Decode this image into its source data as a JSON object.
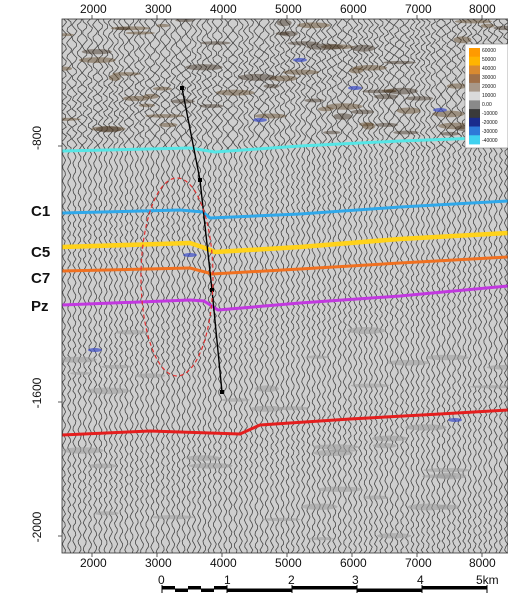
{
  "section": {
    "x_ticks": [
      "2000",
      "3000",
      "4000",
      "5000",
      "6000",
      "7000",
      "8000"
    ],
    "y_ticks": [
      "-800",
      "-1600",
      "-2000"
    ],
    "horizons": [
      {
        "label": "",
        "color": "#55e6e6"
      },
      {
        "label": "C1",
        "color": "#2fa8ea"
      },
      {
        "label": "C5",
        "color": "#ffd21a"
      },
      {
        "label": "C7",
        "color": "#f07020"
      },
      {
        "label": "Pz",
        "color": "#c238e0"
      },
      {
        "label": "",
        "color": "#e41e1e"
      }
    ],
    "fault_color": "#000000",
    "anomaly_outline_color": "#e03030"
  },
  "colorbar": {
    "labels": [
      "60000",
      "50000",
      "40000",
      "30000",
      "20000",
      "10000",
      "0.00",
      "-10000",
      "-20000",
      "-30000",
      "-40000"
    ],
    "colors": [
      "#ff9a00",
      "#ffb400",
      "#d98a30",
      "#a07048",
      "#a89888",
      "#dadada",
      "#8a8a8a",
      "#3a3a3a",
      "#1a2b8c",
      "#2e7ad8",
      "#3fd2f0"
    ]
  },
  "scalebar": {
    "labels": [
      "0",
      "1",
      "2",
      "3",
      "4",
      "5km"
    ]
  }
}
